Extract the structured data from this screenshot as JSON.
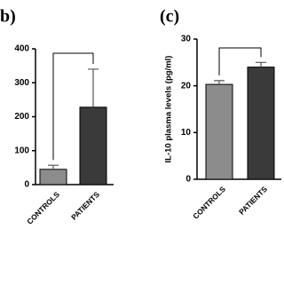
{
  "chart_data": [
    {
      "type": "bar",
      "title": "b)",
      "categories": [
        "CONTROLS",
        "PATIENTS"
      ],
      "values": [
        45,
        228
      ],
      "errors": [
        12,
        112
      ],
      "colors": [
        "#8c8c8c",
        "#3a3a3a"
      ],
      "ylim": [
        0,
        400
      ],
      "yticks": [
        0,
        100,
        200,
        300,
        400
      ]
    },
    {
      "type": "bar",
      "title": "(c)",
      "y_label": "IL-10 plasma levels (pg/ml)",
      "categories": [
        "CONTROLS",
        "PATIENTS"
      ],
      "values": [
        20.3,
        24
      ],
      "errors": [
        0.8,
        1
      ],
      "colors": [
        "#8c8c8c",
        "#3a3a3a"
      ],
      "ylim": [
        0,
        30
      ],
      "yticks": [
        0,
        10,
        20,
        30
      ]
    }
  ]
}
